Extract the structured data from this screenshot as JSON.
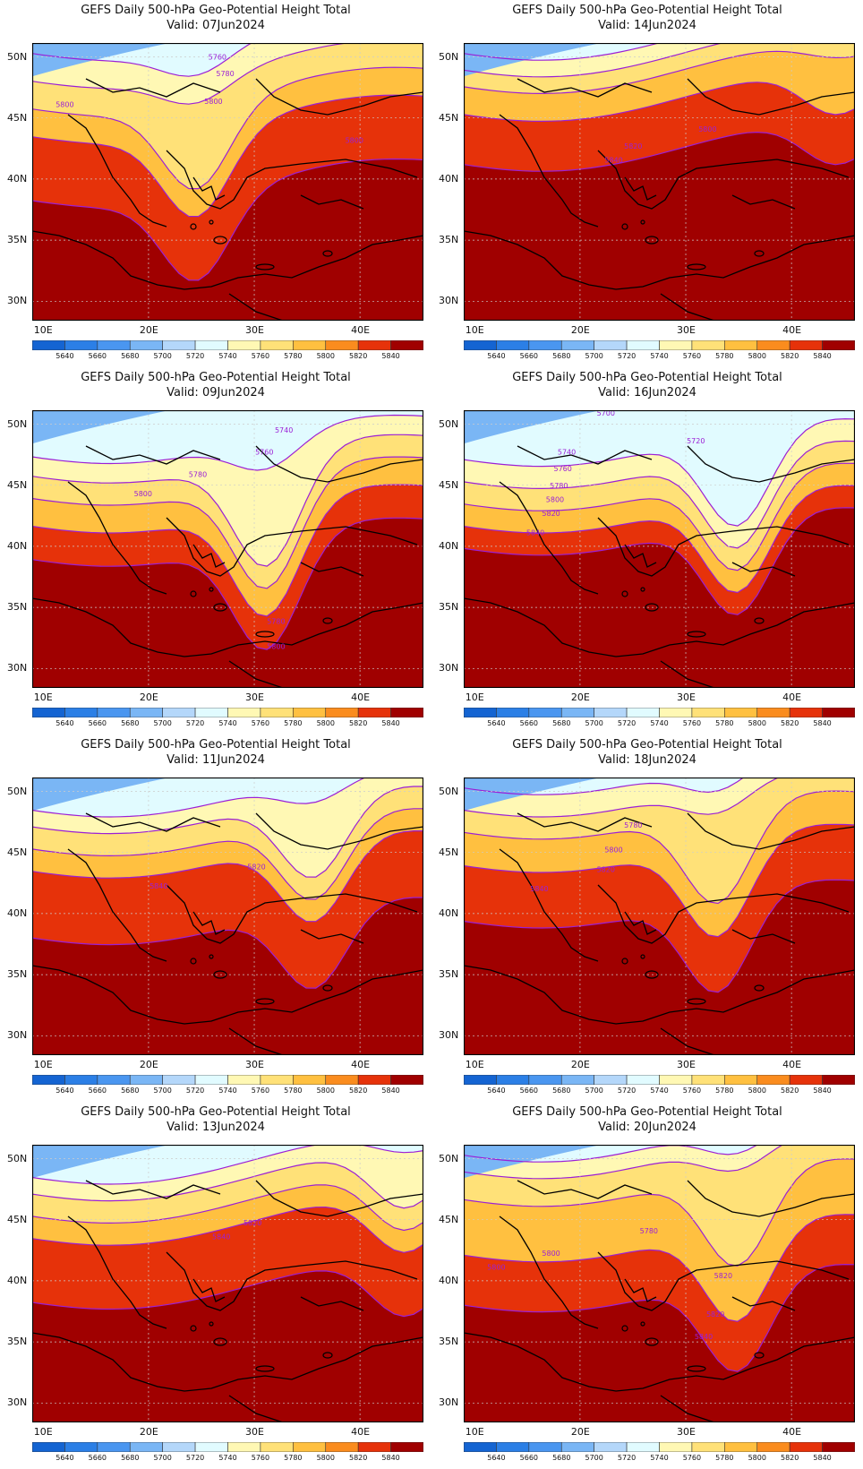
{
  "common": {
    "lat_labels": [
      "50N",
      "45N",
      "40N",
      "35N",
      "30N"
    ],
    "lon_labels": [
      "10E",
      "20E",
      "30E",
      "40E"
    ],
    "legend_values": [
      "5640",
      "5660",
      "5680",
      "5700",
      "5720",
      "5740",
      "5760",
      "5780",
      "5800",
      "5820",
      "5840"
    ],
    "legend_colors": [
      "#1464d2",
      "#2b7fe6",
      "#4a96f0",
      "#7ab6f5",
      "#b4d7fa",
      "#e1fbff",
      "#fff8b4",
      "#ffe178",
      "#ffc040",
      "#fa8c1e",
      "#e6320a",
      "#a00000"
    ],
    "contour_color": "#9b1fd6"
  },
  "panels": [
    {
      "title": "GEFS Daily 500-hPa Geo-Potential Height Total",
      "valid": "Valid:  07Jun2024",
      "labels": [
        "5760",
        "5780",
        "5800",
        "5800",
        "5800"
      ]
    },
    {
      "title": "GEFS Daily 500-hPa Geo-Potential Height Total",
      "valid": "Valid:  14Jun2024",
      "labels": [
        "5800",
        "5820",
        "5840"
      ]
    },
    {
      "title": "GEFS Daily 500-hPa Geo-Potential Height Total",
      "valid": "Valid:  09Jun2024",
      "labels": [
        "5740",
        "5760",
        "5780",
        "5800",
        "5780",
        "5800"
      ]
    },
    {
      "title": "GEFS Daily 500-hPa Geo-Potential Height Total",
      "valid": "Valid:  16Jun2024",
      "labels": [
        "5700",
        "5720",
        "5740",
        "5760",
        "5780",
        "5800",
        "5820",
        "5840"
      ]
    },
    {
      "title": "GEFS Daily 500-hPa Geo-Potential Height Total",
      "valid": "Valid:  11Jun2024",
      "labels": [
        "5820",
        "5840"
      ]
    },
    {
      "title": "GEFS Daily 500-hPa Geo-Potential Height Total",
      "valid": "Valid:  18Jun2024",
      "labels": [
        "5780",
        "5800",
        "5820",
        "5840"
      ]
    },
    {
      "title": "GEFS Daily 500-hPa Geo-Potential Height Total",
      "valid": "Valid:  13Jun2024",
      "labels": [
        "5820",
        "5840"
      ]
    },
    {
      "title": "GEFS Daily 500-hPa Geo-Potential Height Total",
      "valid": "Valid:  20Jun2024",
      "labels": [
        "5780",
        "5800",
        "5820",
        "5800",
        "5820",
        "5840"
      ]
    }
  ]
}
